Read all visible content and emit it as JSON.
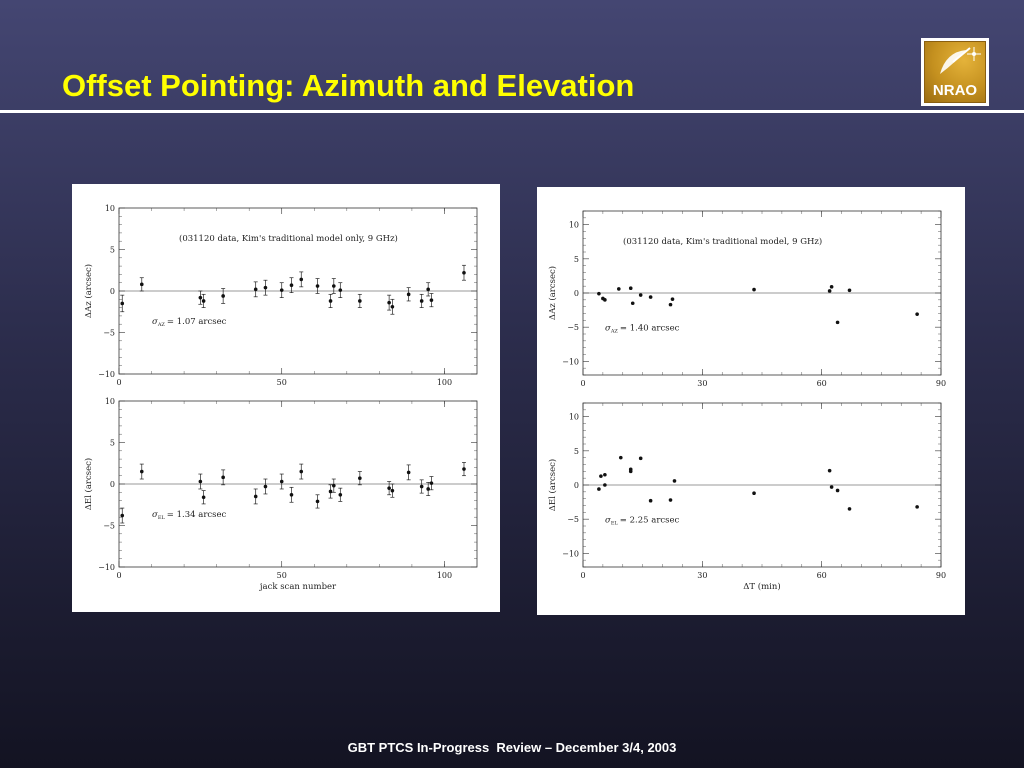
{
  "slide": {
    "title": "Offset Pointing: Azimuth and Elevation",
    "footer": "GBT PTCS In-Progress  Review – December 3/4, 2003",
    "logo_text": "NRAO",
    "colors": {
      "title": "#ffff00",
      "background_top": "#444672",
      "background_bottom": "#131322"
    }
  },
  "chart_data": [
    {
      "type": "scatter",
      "panel": "left-top",
      "title": "(031120 data, Kim's traditional model only, 9 GHz)",
      "xlabel": "",
      "ylabel": "ΔAz (arcsec)",
      "xlim": [
        0,
        110
      ],
      "ylim": [
        -10,
        10
      ],
      "xticks": [
        "0",
        "50",
        "100"
      ],
      "yticks": [
        "10",
        "5",
        "0",
        "−5",
        "−10"
      ],
      "error_bars": true,
      "annotation": {
        "sigma_symbol": "σ",
        "sigma_sub": "AZ",
        "text": "= 1.07 arcsec"
      },
      "points": [
        {
          "x": 1,
          "y": -1.5,
          "err": 1.0
        },
        {
          "x": 7,
          "y": 0.8,
          "err": 0.8
        },
        {
          "x": 25,
          "y": -0.8,
          "err": 0.8
        },
        {
          "x": 26,
          "y": -1.2,
          "err": 0.8
        },
        {
          "x": 32,
          "y": -0.6,
          "err": 0.9
        },
        {
          "x": 42,
          "y": 0.2,
          "err": 0.9
        },
        {
          "x": 45,
          "y": 0.4,
          "err": 0.9
        },
        {
          "x": 50,
          "y": 0.1,
          "err": 0.9
        },
        {
          "x": 53,
          "y": 0.7,
          "err": 0.9
        },
        {
          "x": 56,
          "y": 1.4,
          "err": 0.9
        },
        {
          "x": 61,
          "y": 0.6,
          "err": 0.9
        },
        {
          "x": 65,
          "y": -1.2,
          "err": 0.8
        },
        {
          "x": 66,
          "y": 0.6,
          "err": 0.9
        },
        {
          "x": 68,
          "y": 0.1,
          "err": 0.9
        },
        {
          "x": 74,
          "y": -1.2,
          "err": 0.8
        },
        {
          "x": 83,
          "y": -1.4,
          "err": 0.9
        },
        {
          "x": 84,
          "y": -1.9,
          "err": 0.9
        },
        {
          "x": 89,
          "y": -0.4,
          "err": 0.8
        },
        {
          "x": 93,
          "y": -1.2,
          "err": 0.8
        },
        {
          "x": 95,
          "y": 0.2,
          "err": 0.8
        },
        {
          "x": 96,
          "y": -1.1,
          "err": 0.8
        },
        {
          "x": 106,
          "y": 2.2,
          "err": 0.9
        }
      ]
    },
    {
      "type": "scatter",
      "panel": "left-bottom",
      "title": "",
      "xlabel": "jack scan number",
      "ylabel": "ΔEl (arcsec)",
      "xlim": [
        0,
        110
      ],
      "ylim": [
        -10,
        10
      ],
      "xticks": [
        "0",
        "50",
        "100"
      ],
      "yticks": [
        "10",
        "5",
        "0",
        "−5",
        "−10"
      ],
      "error_bars": true,
      "annotation": {
        "sigma_symbol": "σ",
        "sigma_sub": "EL",
        "text": "= 1.34 arcsec"
      },
      "points": [
        {
          "x": 1,
          "y": -3.8,
          "err": 0.9
        },
        {
          "x": 7,
          "y": 1.5,
          "err": 0.9
        },
        {
          "x": 25,
          "y": 0.3,
          "err": 0.9
        },
        {
          "x": 26,
          "y": -1.6,
          "err": 0.8
        },
        {
          "x": 32,
          "y": 0.8,
          "err": 0.9
        },
        {
          "x": 42,
          "y": -1.5,
          "err": 0.9
        },
        {
          "x": 45,
          "y": -0.3,
          "err": 0.9
        },
        {
          "x": 50,
          "y": 0.3,
          "err": 0.9
        },
        {
          "x": 53,
          "y": -1.3,
          "err": 0.9
        },
        {
          "x": 56,
          "y": 1.5,
          "err": 0.9
        },
        {
          "x": 61,
          "y": -2.1,
          "err": 0.8
        },
        {
          "x": 65,
          "y": -0.9,
          "err": 0.8
        },
        {
          "x": 66,
          "y": -0.2,
          "err": 0.8
        },
        {
          "x": 68,
          "y": -1.3,
          "err": 0.8
        },
        {
          "x": 74,
          "y": 0.7,
          "err": 0.8
        },
        {
          "x": 83,
          "y": -0.5,
          "err": 0.8
        },
        {
          "x": 84,
          "y": -0.8,
          "err": 0.8
        },
        {
          "x": 89,
          "y": 1.4,
          "err": 0.9
        },
        {
          "x": 93,
          "y": -0.3,
          "err": 0.8
        },
        {
          "x": 95,
          "y": -0.6,
          "err": 0.8
        },
        {
          "x": 96,
          "y": 0.1,
          "err": 0.8
        },
        {
          "x": 106,
          "y": 1.8,
          "err": 0.8
        }
      ]
    },
    {
      "type": "scatter",
      "panel": "right-top",
      "title": "(031120 data, Kim's traditional model, 9 GHz)",
      "xlabel": "",
      "ylabel": "ΔAz (arcsec)",
      "xlim": [
        0,
        90
      ],
      "ylim": [
        -12,
        12
      ],
      "xticks": [
        "0",
        "30",
        "60",
        "90"
      ],
      "yticks": [
        "10",
        "5",
        "0",
        "−5",
        "−10"
      ],
      "error_bars": false,
      "annotation": {
        "sigma_symbol": "σ",
        "sigma_sub": "AZ",
        "text": "= 1.40 arcsec"
      },
      "points": [
        {
          "x": 4,
          "y": -0.1
        },
        {
          "x": 5,
          "y": -0.8
        },
        {
          "x": 5.5,
          "y": -1.0
        },
        {
          "x": 9,
          "y": 0.6
        },
        {
          "x": 12,
          "y": 0.7
        },
        {
          "x": 12.5,
          "y": -1.5
        },
        {
          "x": 14.5,
          "y": -0.3
        },
        {
          "x": 17,
          "y": -0.6
        },
        {
          "x": 22,
          "y": -1.7
        },
        {
          "x": 22.5,
          "y": -0.9
        },
        {
          "x": 43,
          "y": 0.5
        },
        {
          "x": 62,
          "y": 0.3
        },
        {
          "x": 62.5,
          "y": 0.9
        },
        {
          "x": 64,
          "y": -4.3
        },
        {
          "x": 67,
          "y": 0.4
        },
        {
          "x": 84,
          "y": -3.1
        }
      ]
    },
    {
      "type": "scatter",
      "panel": "right-bottom",
      "title": "",
      "xlabel": "ΔT (min)",
      "ylabel": "ΔEl (arcsec)",
      "xlim": [
        0,
        90
      ],
      "ylim": [
        -12,
        12
      ],
      "xticks": [
        "0",
        "30",
        "60",
        "90"
      ],
      "yticks": [
        "10",
        "5",
        "0",
        "−5",
        "−10"
      ],
      "error_bars": false,
      "annotation": {
        "sigma_symbol": "σ",
        "sigma_sub": "EL",
        "text": "= 2.25 arcsec"
      },
      "points": [
        {
          "x": 4,
          "y": -0.6
        },
        {
          "x": 4.5,
          "y": 1.3
        },
        {
          "x": 5.5,
          "y": 1.5
        },
        {
          "x": 5.5,
          "y": 0.0
        },
        {
          "x": 9.5,
          "y": 4.0
        },
        {
          "x": 12,
          "y": 2.0
        },
        {
          "x": 12,
          "y": 2.3
        },
        {
          "x": 14.5,
          "y": 3.9
        },
        {
          "x": 17,
          "y": -2.3
        },
        {
          "x": 22,
          "y": -2.2
        },
        {
          "x": 23,
          "y": 0.6
        },
        {
          "x": 43,
          "y": -1.2
        },
        {
          "x": 62,
          "y": 2.1
        },
        {
          "x": 62.5,
          "y": -0.3
        },
        {
          "x": 64,
          "y": -0.8
        },
        {
          "x": 67,
          "y": -3.5
        },
        {
          "x": 84,
          "y": -3.2
        }
      ]
    }
  ]
}
